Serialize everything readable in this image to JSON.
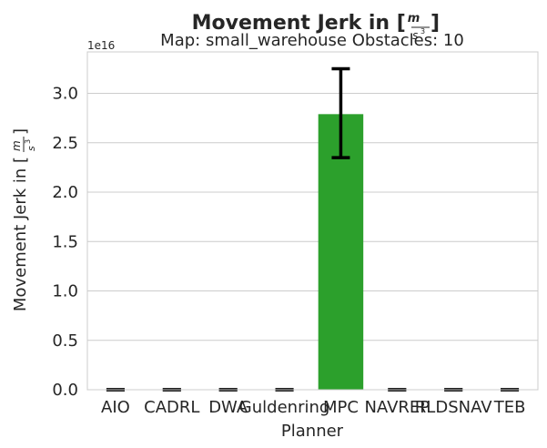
{
  "chart_data": {
    "type": "bar",
    "title": "Movement Jerk in [m/s³]",
    "title_base": "Movement Jerk in [",
    "title_frac_num": "m",
    "title_frac_den": "s",
    "title_frac_exp": "3",
    "title_close": "]",
    "subtitle": "Map: small_warehouse Obstacles: 10",
    "xlabel": "Planner",
    "ylabel": "Movement Jerk in [m/s³]",
    "ylabel_base": "Movement Jerk in [",
    "ylabel_frac_num": "m",
    "ylabel_frac_den": "s",
    "ylabel_frac_exp": "3",
    "ylabel_close": "]",
    "y_offset_label": "1e16",
    "y_scale": 1e+16,
    "ylim": [
      0,
      3.42
    ],
    "yticks": [
      0.0,
      0.5,
      1.0,
      1.5,
      2.0,
      2.5,
      3.0
    ],
    "ytick_labels": [
      "0.0",
      "0.5",
      "1.0",
      "1.5",
      "2.0",
      "2.5",
      "3.0"
    ],
    "grid": true,
    "categories": [
      "AIO",
      "CADRL",
      "DWA",
      "Guldenring",
      "MPC",
      "NAVREP",
      "RLDSNAV",
      "TEB"
    ],
    "values": [
      0,
      0,
      0,
      0,
      2.79,
      0,
      0,
      0
    ],
    "error_low": [
      0,
      0,
      0,
      0,
      2.35,
      0,
      0,
      0
    ],
    "error_high": [
      0,
      0,
      0,
      0,
      3.25,
      0,
      0,
      0
    ],
    "bar_colors": [
      "#1f77b4",
      "#ff7f0e",
      "#2ca02c",
      "#d62728",
      "#2ca02c",
      "#8c564b",
      "#e377c2",
      "#7f7f7f"
    ]
  }
}
